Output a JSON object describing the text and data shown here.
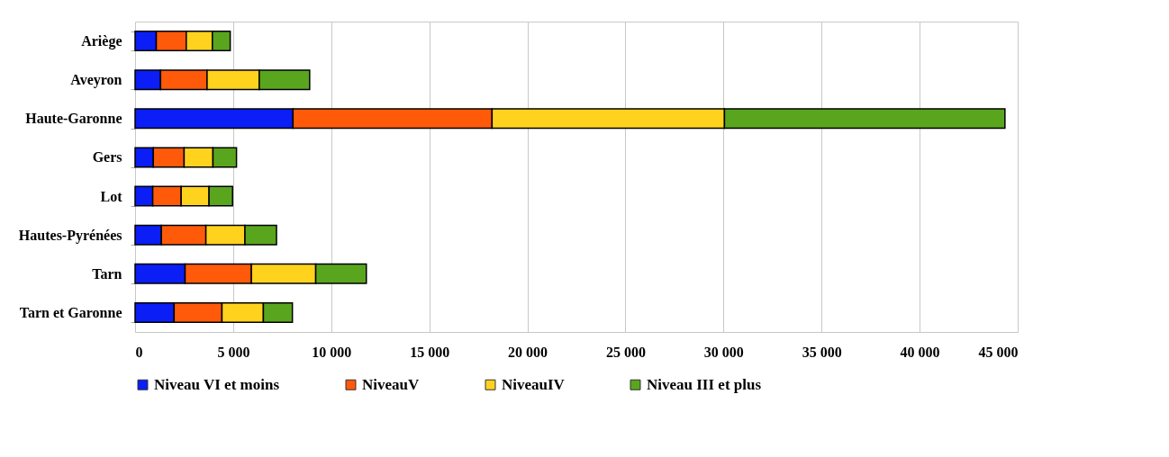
{
  "chart_data": {
    "type": "bar",
    "orientation": "horizontal",
    "stacked": true,
    "categories": [
      "Ariège",
      "Aveyron",
      "Haute-Garonne",
      "Gers",
      "Lot",
      "Hautes-Pyrénées",
      "Tarn",
      "Tarn et Garonne"
    ],
    "series": [
      {
        "name": "Niveau VI et moins",
        "color": "#0a1ef5",
        "values": [
          1080,
          1300,
          8050,
          930,
          900,
          1340,
          2550,
          1990
        ]
      },
      {
        "name": "NiveauV",
        "color": "#ff5a0a",
        "values": [
          1530,
          2370,
          10150,
          1570,
          1450,
          2270,
          3380,
          2440
        ]
      },
      {
        "name": "NiveauIV",
        "color": "#ffd21e",
        "values": [
          1330,
          2660,
          11850,
          1470,
          1420,
          1990,
          3280,
          2110
        ]
      },
      {
        "name": "Niveau III et plus",
        "color": "#5aa51e",
        "values": [
          910,
          2570,
          14300,
          1200,
          1200,
          1610,
          2580,
          1480
        ]
      }
    ],
    "xlim": [
      0,
      45000
    ],
    "xticks": [
      0,
      {
        "value": 5000,
        "label": "5 000"
      },
      {
        "value": 10000,
        "label": "10 000"
      },
      {
        "value": 15000,
        "label": "15 000"
      },
      {
        "value": 20000,
        "label": "20 000"
      },
      {
        "value": 25000,
        "label": "25 000"
      },
      {
        "value": 30000,
        "label": "30 000"
      },
      {
        "value": 35000,
        "label": "35 000"
      },
      {
        "value": 40000,
        "label": "40 000"
      },
      {
        "value": 45000,
        "label": "45 000"
      }
    ],
    "grid": "x",
    "legend": "bottom"
  }
}
